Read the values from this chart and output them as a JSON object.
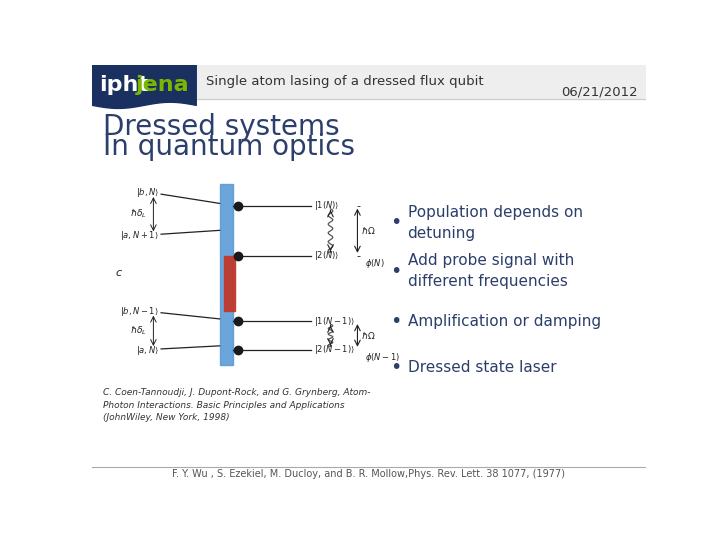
{
  "slide_bg": "#ffffff",
  "header_bg": "#eeeeee",
  "header_line_color": "#cccccc",
  "logo_bg": "#1a3060",
  "logo_text_ipht": "#ffffff",
  "logo_text_jena": "#7ab800",
  "header_title": "Single atom lasing of a dressed flux qubit",
  "header_date": "06/21/2012",
  "slide_title_line1": "Dressed systems",
  "slide_title_line2": "In quantum optics",
  "title_color": "#2c3e6b",
  "bullet_points": [
    "Population depends on\ndetuning",
    "Add probe signal with\ndifferent frequencies",
    "Amplification or damping",
    "Dressed state laser"
  ],
  "bullet_color": "#2c3e6b",
  "citation_text": "C. Coen-Tannoudji, J. Dupont-Rock, and G. Grynberg, Atom-\nPhoton Interactions. Basic Principles and Applications\n(JohnWiley, New York, 1998)",
  "footer_text": "F. Y. Wu , S. Ezekiel, M. Ducloy, and B. R. Mollow,Phys. Rev. Lett. 38 1077, (1977)",
  "footer_color": "#555555",
  "header_text_color": "#333333",
  "date_color": "#333333",
  "diag_color": "#222222",
  "blue_rect_color": "#5b9bd5",
  "red_rect_color": "#c0392b"
}
